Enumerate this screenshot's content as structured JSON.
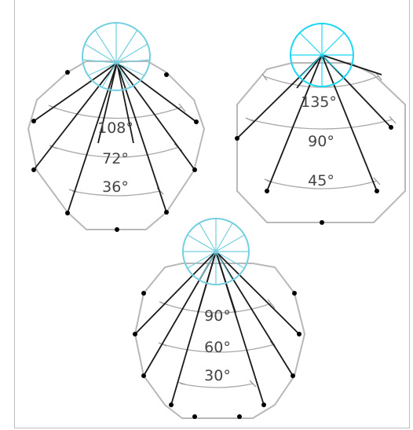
{
  "diagrams": [
    {
      "id": "polygon-10",
      "sides": 10,
      "circle_color": "#74cfe0",
      "angles": [
        "108°",
        "72°",
        "36°"
      ]
    },
    {
      "id": "polygon-8",
      "sides": 8,
      "circle_color": "#1bd6f4",
      "angles": [
        "135°",
        "90°",
        "45°"
      ]
    },
    {
      "id": "polygon-12",
      "sides": 12,
      "circle_color": "#74cfe0",
      "angles": [
        "90°",
        "60°",
        "30°"
      ]
    }
  ]
}
